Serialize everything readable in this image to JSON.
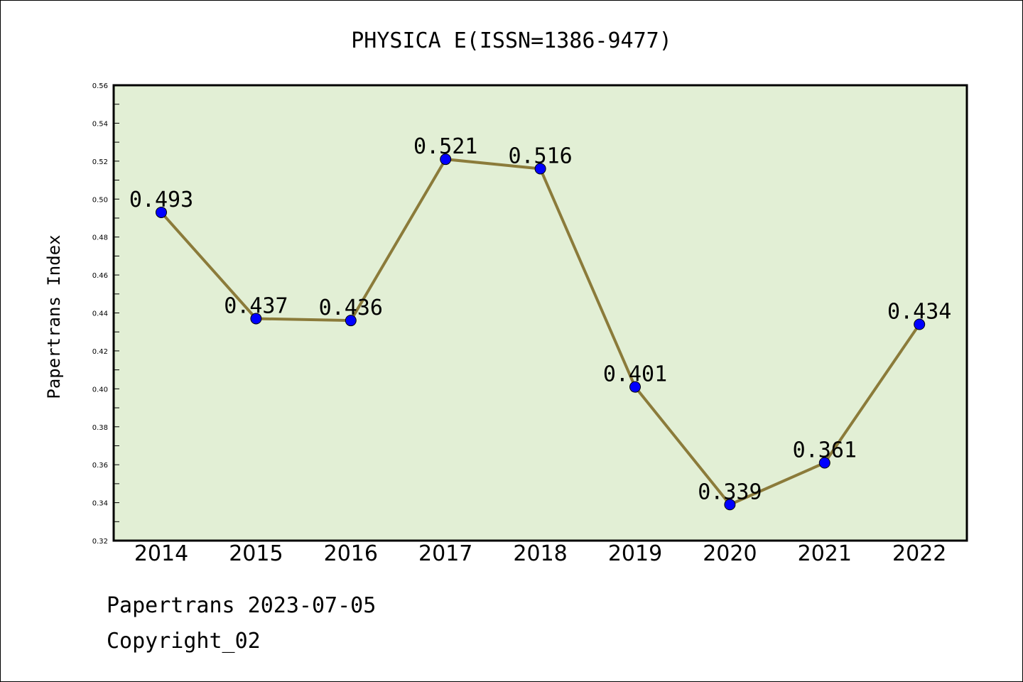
{
  "chart_data": {
    "type": "line",
    "title": "PHYSICA E(ISSN=1386-9477)",
    "xlabel": "",
    "ylabel": "Papertrans Index",
    "categories": [
      "2014",
      "2015",
      "2016",
      "2017",
      "2018",
      "2019",
      "2020",
      "2021",
      "2022"
    ],
    "series": [
      {
        "values": [
          0.493,
          0.437,
          0.436,
          0.521,
          0.516,
          0.401,
          0.339,
          0.361,
          0.434
        ],
        "labels": [
          "0.493",
          "0.437",
          "0.436",
          "0.521",
          "0.516",
          "0.401",
          "0.339",
          "0.361",
          "0.434"
        ]
      }
    ],
    "ylim": [
      0.32,
      0.56
    ],
    "yticks": [
      "0.32",
      "0.34",
      "0.36",
      "0.38",
      "0.40",
      "0.42",
      "0.44",
      "0.46",
      "0.48",
      "0.50",
      "0.52",
      "0.54",
      "0.56"
    ],
    "grid": false,
    "colors": {
      "plot_background": "#e2efd5",
      "line": "#8b7b3a",
      "marker": "#0000ff"
    }
  },
  "footer": {
    "line1": "Papertrans 2023-07-05",
    "line2": "Copyright_02"
  }
}
